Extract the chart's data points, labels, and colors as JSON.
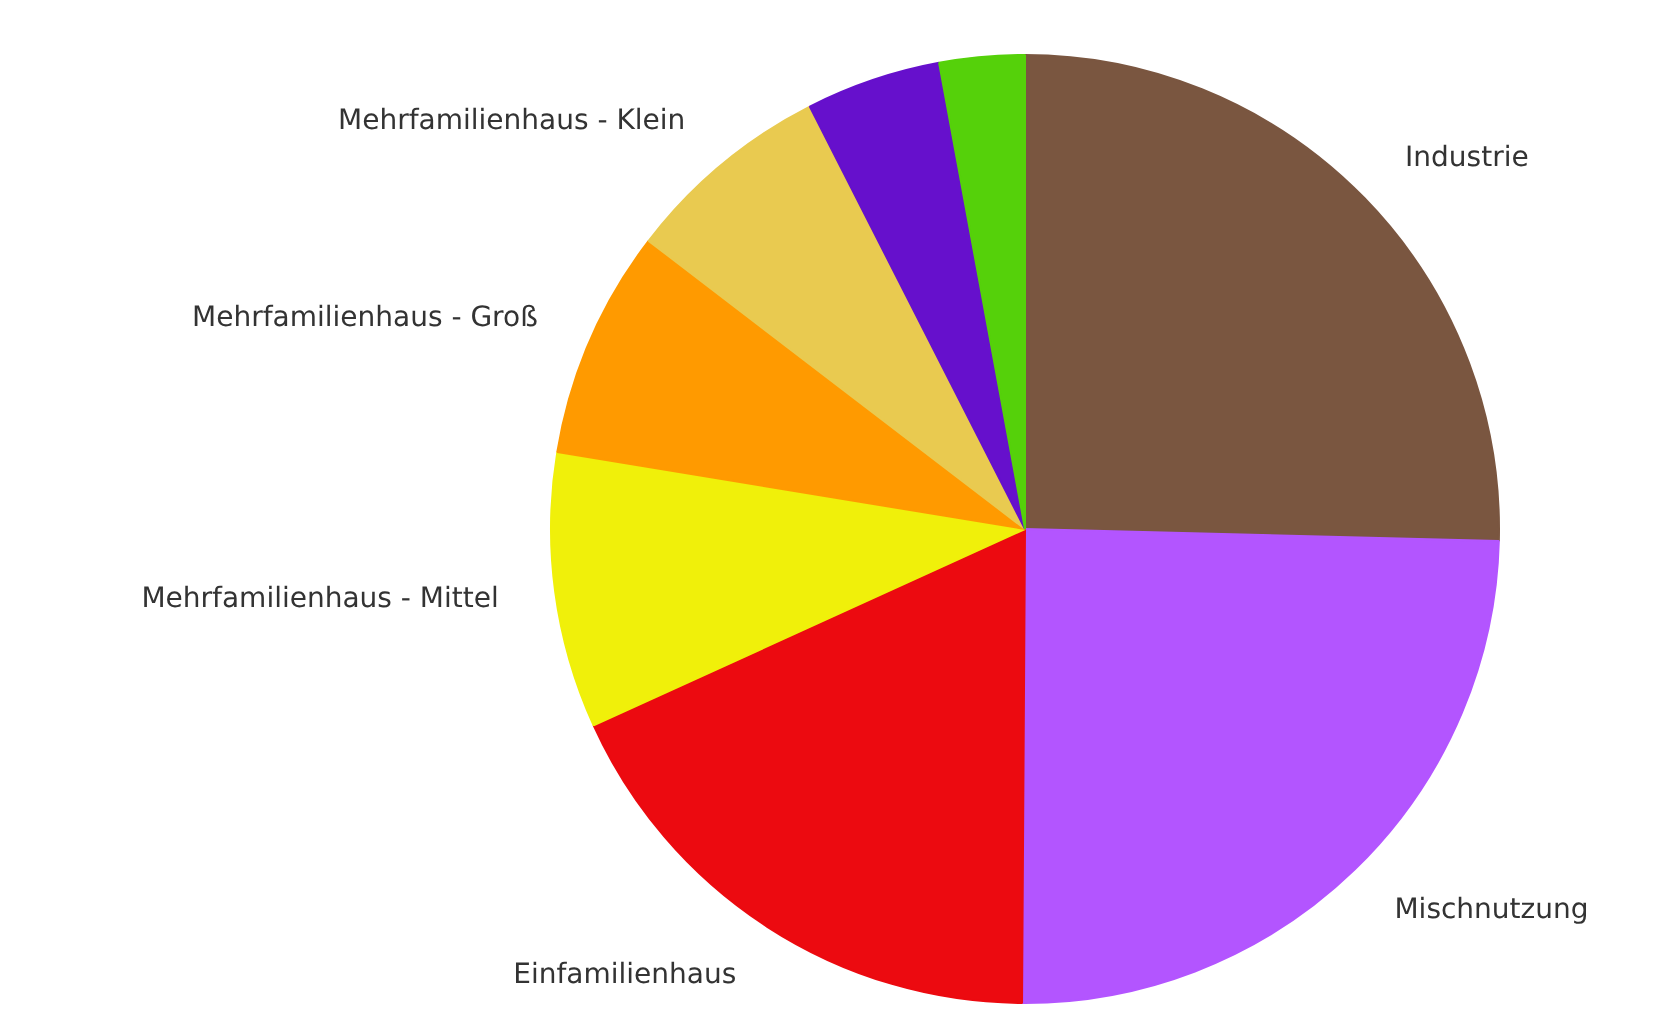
{
  "chart_data": {
    "type": "pie",
    "categories": [
      "Industrie",
      "Mischnutzung",
      "Einfamilienhaus",
      "Mehrfamilienhaus - Mittel",
      "Mehrfamilienhaus - Groß",
      "Mehrfamilienhaus - Klein",
      null,
      null
    ],
    "values": [
      25.4,
      24.7,
      18.1,
      9.4,
      7.8,
      7.1,
      4.6,
      2.9
    ],
    "colors": [
      "#7a5640",
      "#b355ff",
      "#ec0a10",
      "#f0f00a",
      "#ff9a00",
      "#e9ca50",
      "#6610cc",
      "#55d10a"
    ]
  }
}
